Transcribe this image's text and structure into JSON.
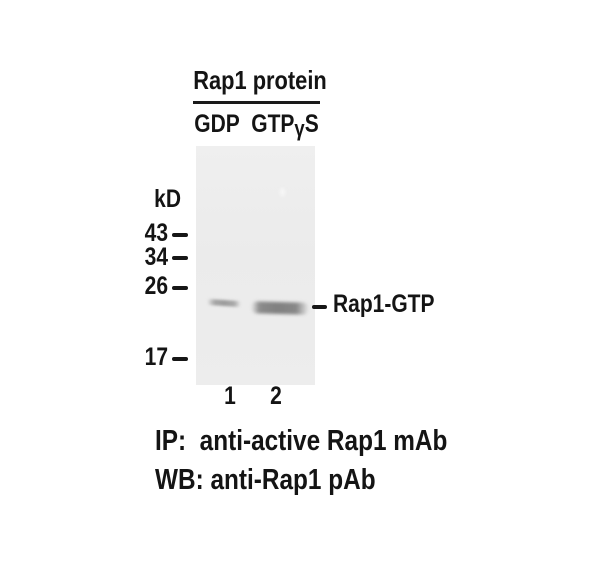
{
  "header": {
    "title": "Rap1 protein",
    "conditions": [
      {
        "label": "GDP"
      },
      {
        "pre": "GTP",
        "gamma": "γ",
        "post": "S"
      }
    ]
  },
  "gel": {
    "unit_label": "kD",
    "markers": [
      {
        "value": "43"
      },
      {
        "value": "34"
      },
      {
        "value": "26"
      },
      {
        "value": "17"
      }
    ],
    "band_label": "Rap1-GTP",
    "lanes": [
      {
        "number": "1"
      },
      {
        "number": "2"
      }
    ]
  },
  "caption": {
    "lines": [
      "IP:  anti-active Rap1 mAb",
      "WB: anti-Rap1 pAb"
    ]
  },
  "colors": {
    "background": "#ffffff",
    "text": "#141414",
    "gel": "#ececec",
    "band_strong": "#828282",
    "band_weak": "#a0a0a0"
  }
}
